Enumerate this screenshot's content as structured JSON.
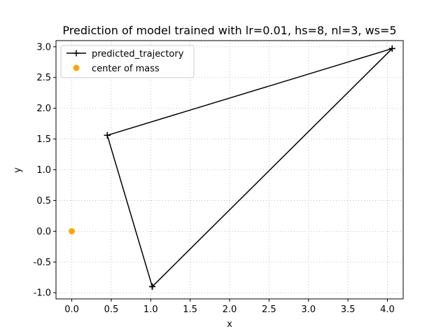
{
  "chart_data": {
    "type": "line",
    "title": "Prediction of model trained with lr=0.01, hs=8, nl=3, ws=5",
    "xlabel": "x",
    "ylabel": "y",
    "xlim": [
      -0.2,
      4.2
    ],
    "ylim": [
      -1.1,
      3.1
    ],
    "xticks": [
      "0.0",
      "0.5",
      "1.0",
      "1.5",
      "2.0",
      "2.5",
      "3.0",
      "3.5",
      "4.0"
    ],
    "yticks": [
      "-1.0",
      "-0.5",
      "0.0",
      "0.5",
      "1.0",
      "1.5",
      "2.0",
      "2.5",
      "3.0"
    ],
    "grid": true,
    "legend_position": "top-left",
    "series": [
      {
        "name": "predicted_trajectory",
        "color": "#000000",
        "marker": "plus",
        "points": [
          [
            0.45,
            1.56
          ],
          [
            1.02,
            -0.9
          ],
          [
            4.06,
            2.97
          ],
          [
            0.45,
            1.56
          ],
          [
            1.02,
            -0.9
          ],
          [
            4.06,
            2.97
          ],
          [
            0.45,
            1.56
          ],
          [
            1.02,
            -0.9
          ]
        ]
      },
      {
        "name": "center of mass",
        "color": "#ffa500",
        "marker": "circle",
        "points": [
          [
            0.0,
            0.0
          ]
        ]
      }
    ]
  }
}
